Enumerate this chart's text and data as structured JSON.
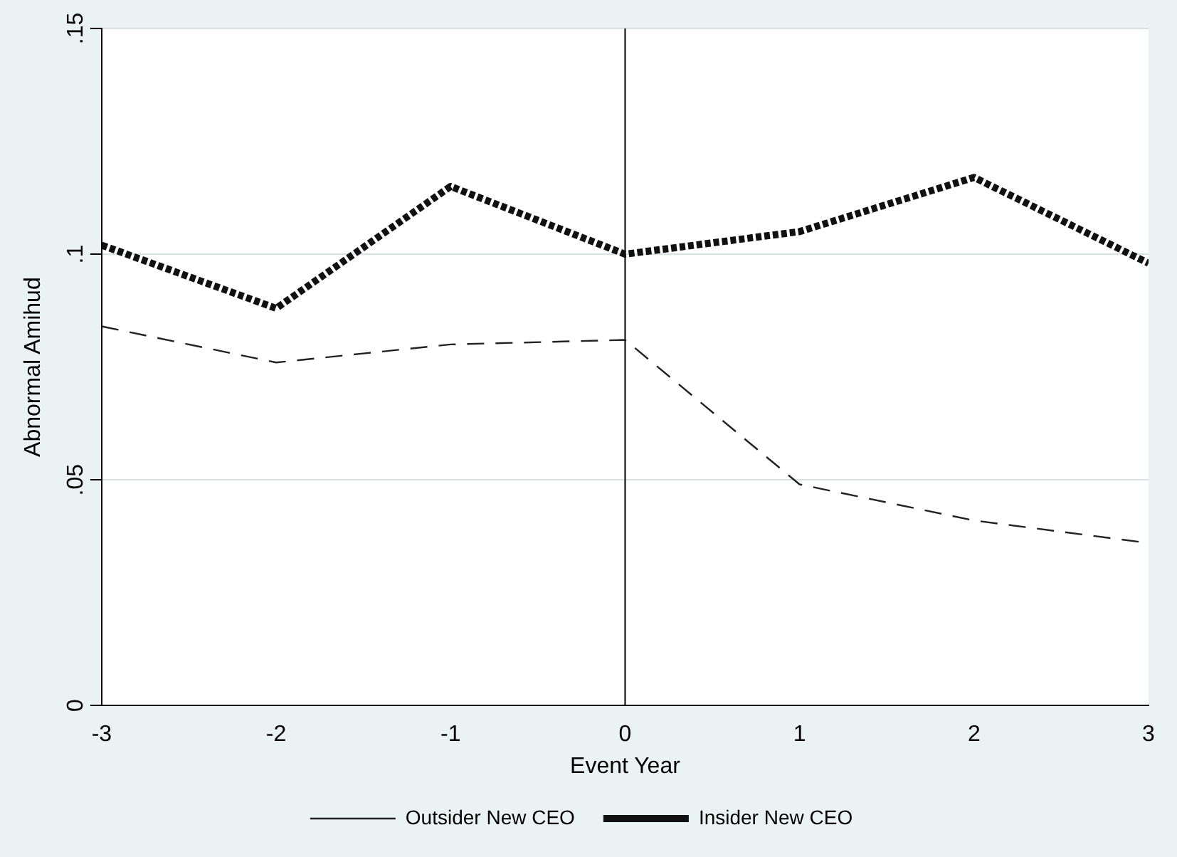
{
  "chart_data": {
    "type": "line",
    "xlabel": "Event Year",
    "ylabel": "Abnormal Amihud",
    "x": [
      -3,
      -2,
      -1,
      0,
      1,
      2,
      3
    ],
    "series": [
      {
        "name": "Outsider New CEO",
        "color": "#222222",
        "line_style": "dashed",
        "values": [
          0.084,
          0.076,
          0.08,
          0.081,
          0.049,
          0.041,
          0.036
        ]
      },
      {
        "name": "Insider New CEO",
        "color": "#111111",
        "line_style": "dotted",
        "values": [
          0.102,
          0.088,
          0.115,
          0.1,
          0.105,
          0.117,
          0.098
        ]
      }
    ],
    "xlim": [
      -3,
      3
    ],
    "xticks": [
      -3,
      -2,
      -1,
      0,
      1,
      2,
      3
    ],
    "ylim": [
      0,
      0.15
    ],
    "yticks": [
      {
        "value": 0,
        "label": "0"
      },
      {
        "value": 0.05,
        "label": ".05"
      },
      {
        "value": 0.1,
        "label": ".1"
      },
      {
        "value": 0.15,
        "label": ".15"
      }
    ],
    "ref_lines": [
      {
        "axis": "x",
        "value": 0,
        "color": "#000000"
      }
    ],
    "grid": "y",
    "legend": "bottom",
    "marker": "none"
  }
}
